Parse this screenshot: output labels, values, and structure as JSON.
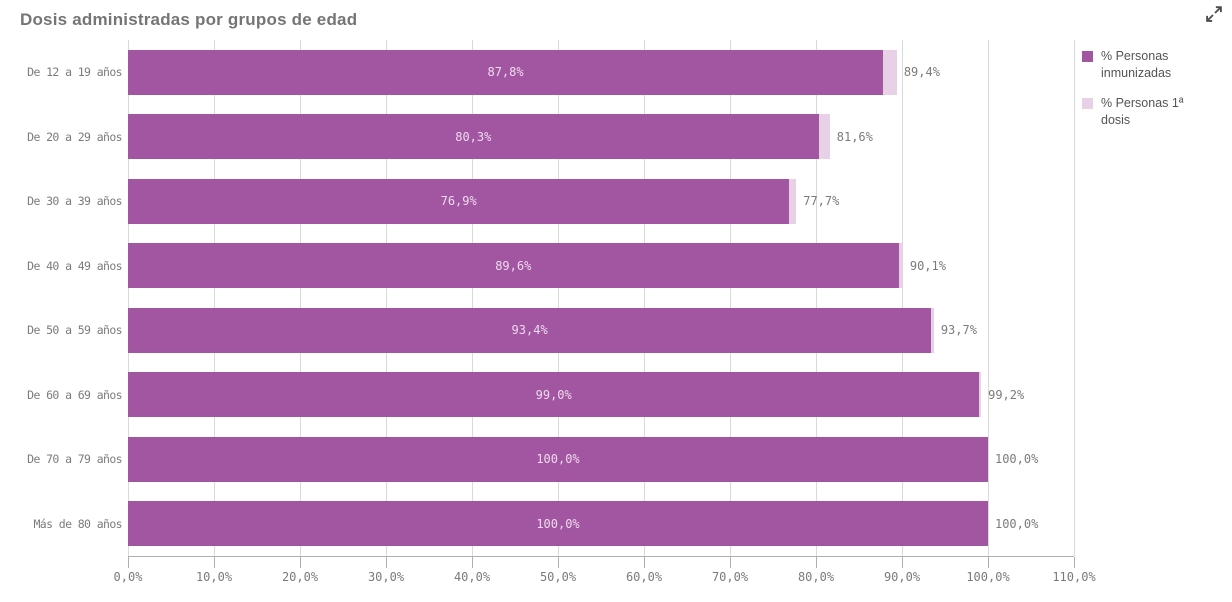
{
  "title": "Dosis administradas por grupos de edad",
  "icons": {
    "expand": "expand-arrows-icon"
  },
  "colors": {
    "immunized": "#A255A0",
    "first_dose": "#E8D0E7",
    "grid": "#D9D9D9",
    "axis": "#B0B0B0",
    "label_text": "#7B7B7B",
    "title_text": "#757575",
    "inner_label_text": "#EDDCED",
    "legend_text": "#545454"
  },
  "legend": {
    "items": [
      {
        "label": "% Personas inmunizadas",
        "color": "#A255A0"
      },
      {
        "label": "% Personas 1ª dosis",
        "color": "#E8D0E7"
      }
    ]
  },
  "chart_data": {
    "type": "bar",
    "orientation": "horizontal",
    "title": "Dosis administradas por grupos de edad",
    "categories": [
      "De 12 a 19 años",
      "De 20 a 29 años",
      "De 30 a 39 años",
      "De 40 a 49 años",
      "De 50 a 59 años",
      "De 60 a 69 años",
      "De 70 a 79 años",
      "Más de 80 años"
    ],
    "series": [
      {
        "name": "% Personas inmunizadas",
        "color": "#A255A0",
        "values": [
          87.8,
          80.3,
          76.9,
          89.6,
          93.4,
          99.0,
          100.0,
          100.0
        ],
        "labels": [
          "87,8%",
          "80,3%",
          "76,9%",
          "89,6%",
          "93,4%",
          "99,0%",
          "100,0%",
          "100,0%"
        ]
      },
      {
        "name": "% Personas 1ª dosis",
        "color": "#E8D0E7",
        "values": [
          89.4,
          81.6,
          77.7,
          90.1,
          93.7,
          99.2,
          100.0,
          100.0
        ],
        "labels": [
          "89,4%",
          "81,6%",
          "77,7%",
          "90,1%",
          "93,7%",
          "99,2%",
          "100,0%",
          "100,0%"
        ]
      }
    ],
    "x_ticks": {
      "values": [
        0,
        10,
        20,
        30,
        40,
        50,
        60,
        70,
        80,
        90,
        100,
        110
      ],
      "labels": [
        "0,0%",
        "10,0%",
        "20,0%",
        "30,0%",
        "40,0%",
        "50,0%",
        "60,0%",
        "70,0%",
        "80,0%",
        "90,0%",
        "100,0%",
        "110,0%"
      ]
    },
    "xlim": [
      0,
      110
    ],
    "grid": "vertical",
    "legend_position": "right"
  }
}
